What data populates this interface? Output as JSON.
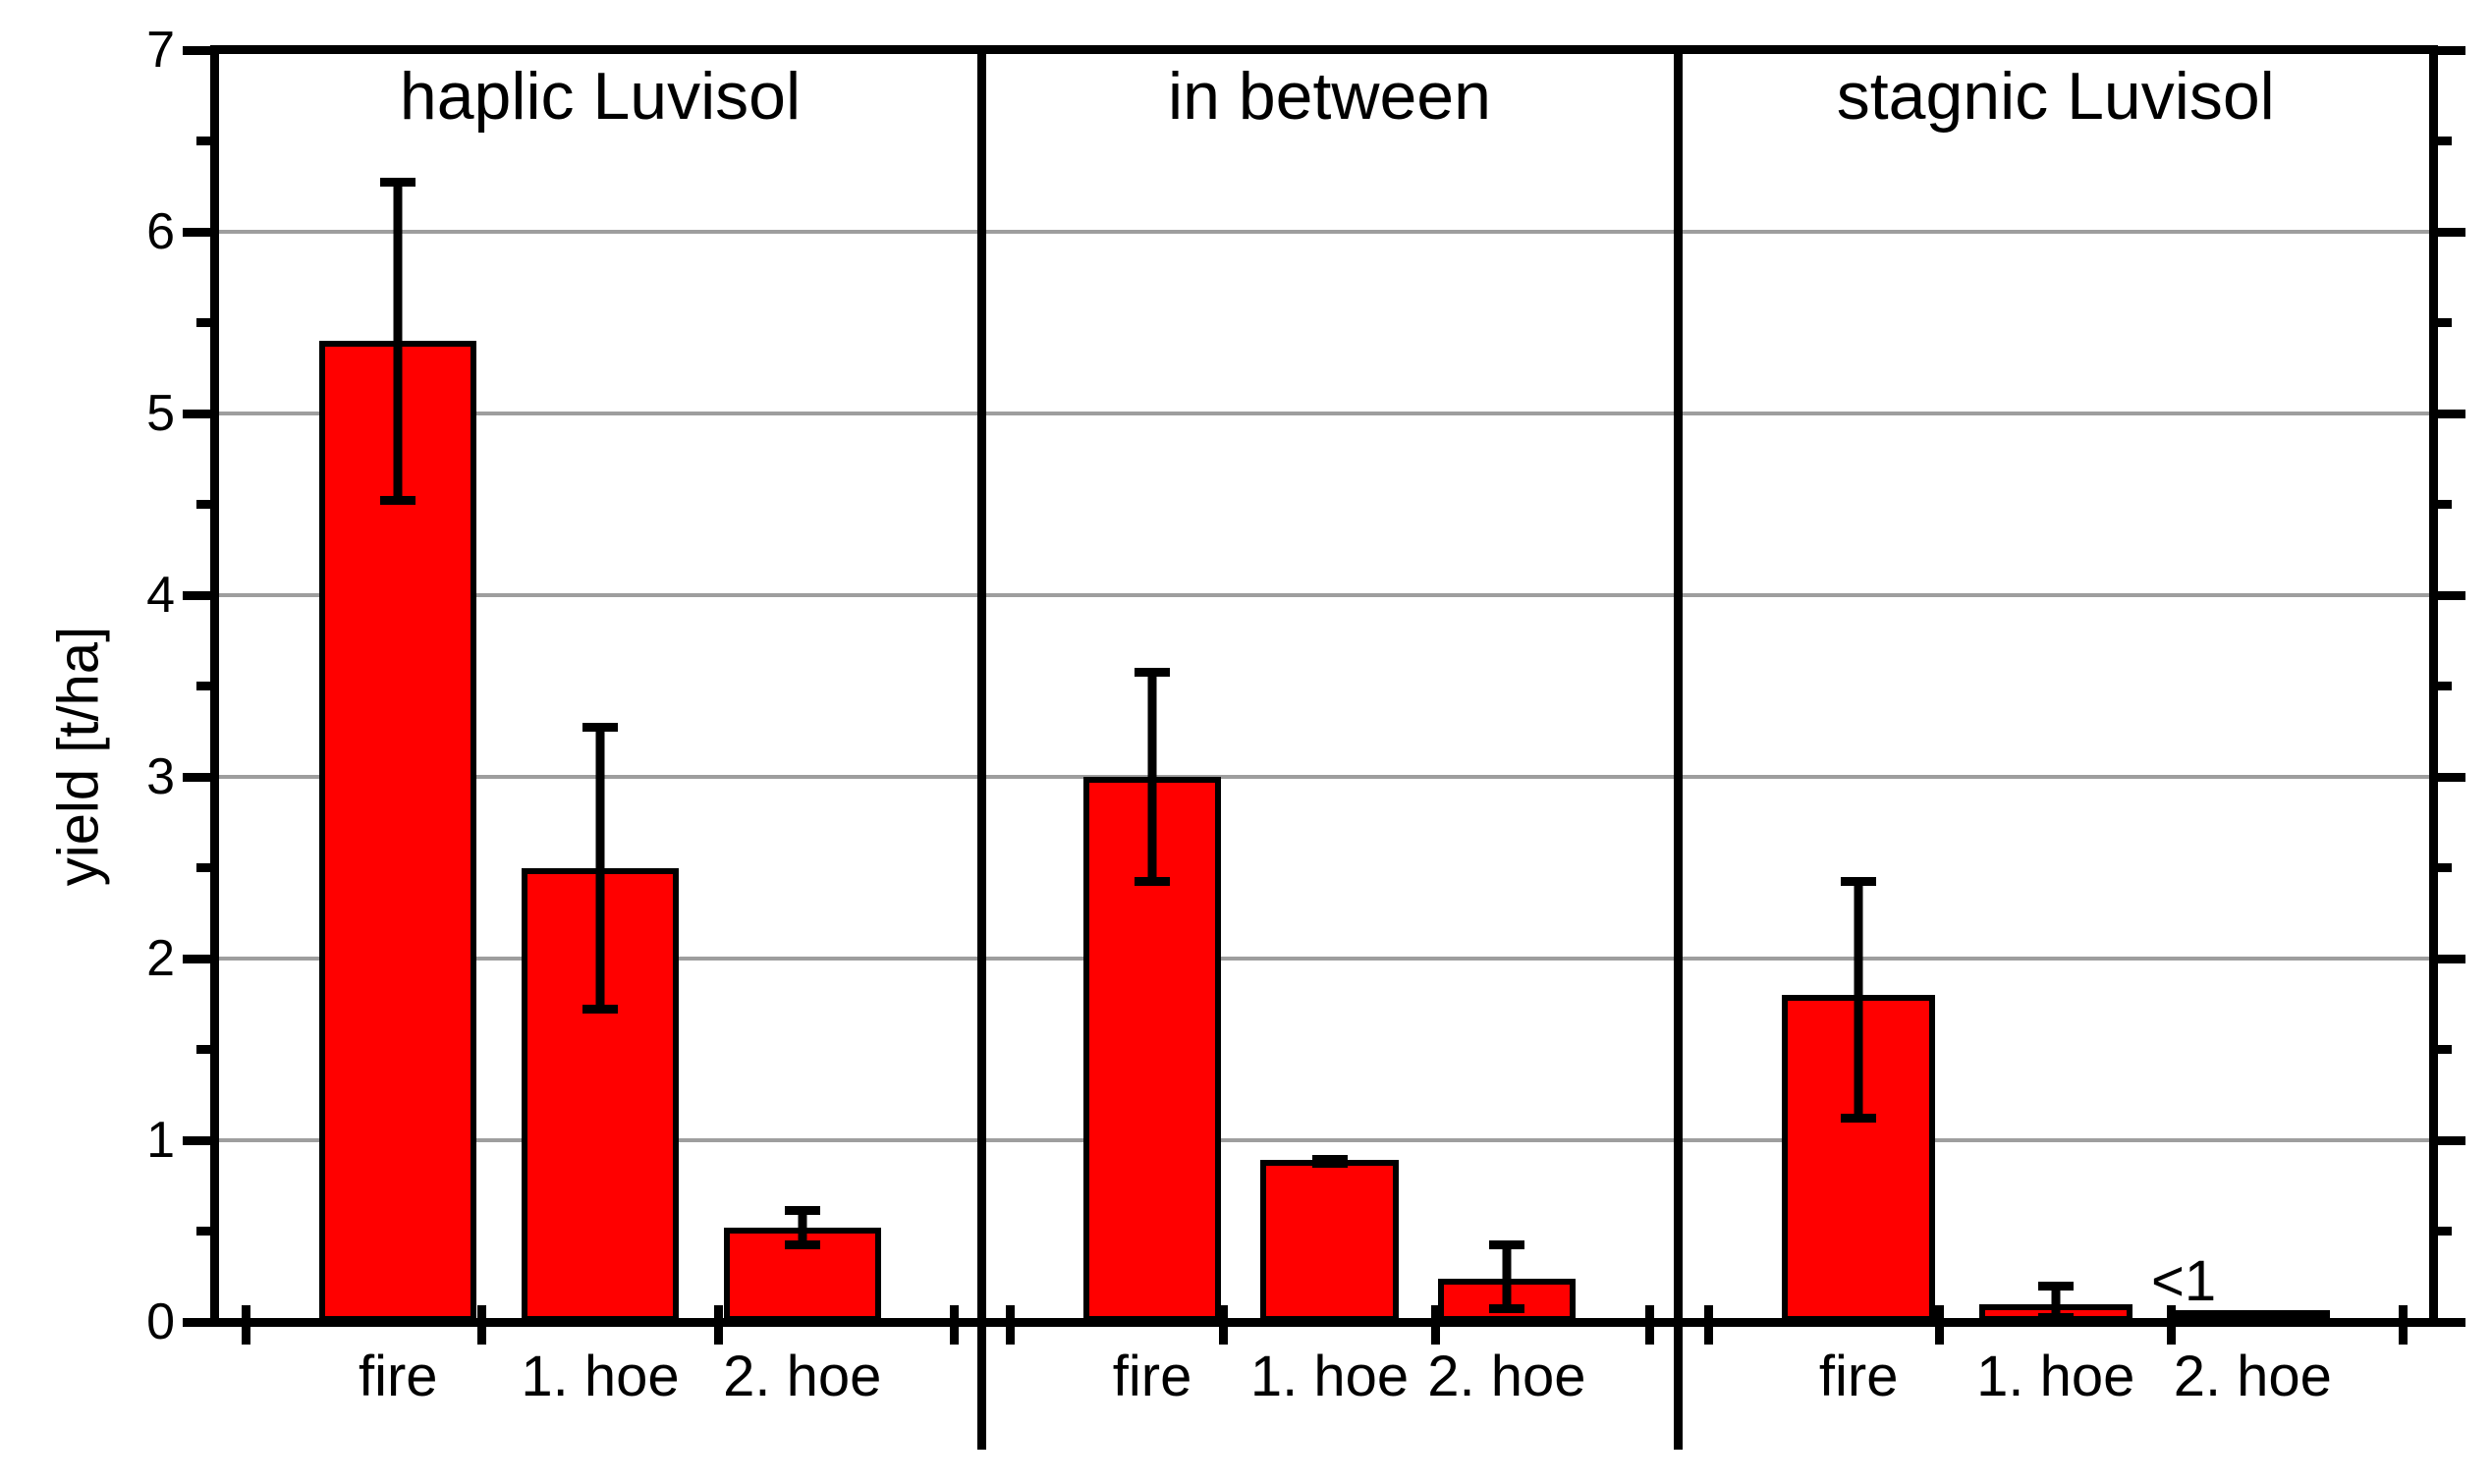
{
  "chart_data": {
    "type": "bar",
    "title": "",
    "ylabel": "yield [t/ha]",
    "xlabel": "",
    "ylim": [
      0,
      7
    ],
    "ytick_labels": [
      "0",
      "1",
      "2",
      "3",
      "4",
      "5",
      "6",
      "7"
    ],
    "minor_tick_step": 0.5,
    "grid": {
      "horizontal_at": [
        1,
        2,
        3,
        4,
        5,
        6
      ],
      "on": true
    },
    "legend": "none",
    "colors": {
      "bar_fill": "#FF0000",
      "bar_outline": "#000000",
      "gridline": "#9E9E9E",
      "frame": "#000000",
      "background": "#FFFFFF"
    },
    "panels": [
      {
        "title": "haplic Luvisol",
        "categories": [
          "fire",
          "1. hoe",
          "2. hoe"
        ],
        "values": [
          5.4,
          2.5,
          0.52
        ],
        "errors": [
          {
            "low": 4.5,
            "high": 6.3
          },
          {
            "low": 1.7,
            "high": 3.3
          },
          {
            "low": 0.4,
            "high": 0.64
          }
        ],
        "annotations": []
      },
      {
        "title": "in between",
        "categories": [
          "fire",
          "1. hoe",
          "2. hoe"
        ],
        "values": [
          3.0,
          0.89,
          0.24
        ],
        "errors": [
          {
            "low": 2.4,
            "high": 3.6
          },
          {
            "low": 0.85,
            "high": 0.92
          },
          {
            "low": 0.05,
            "high": 0.45
          }
        ],
        "annotations": []
      },
      {
        "title": "stagnic Luvisol",
        "categories": [
          "fire",
          "1. hoe",
          "2. hoe"
        ],
        "values": [
          1.8,
          0.1,
          0.02
        ],
        "errors": [
          {
            "low": 1.1,
            "high": 2.45
          },
          {
            "low": 0.0,
            "high": 0.22
          },
          {
            "low": 0.0,
            "high": 0.05
          }
        ],
        "annotations": [
          {
            "text": "<1",
            "category_index": 2
          }
        ]
      }
    ]
  }
}
